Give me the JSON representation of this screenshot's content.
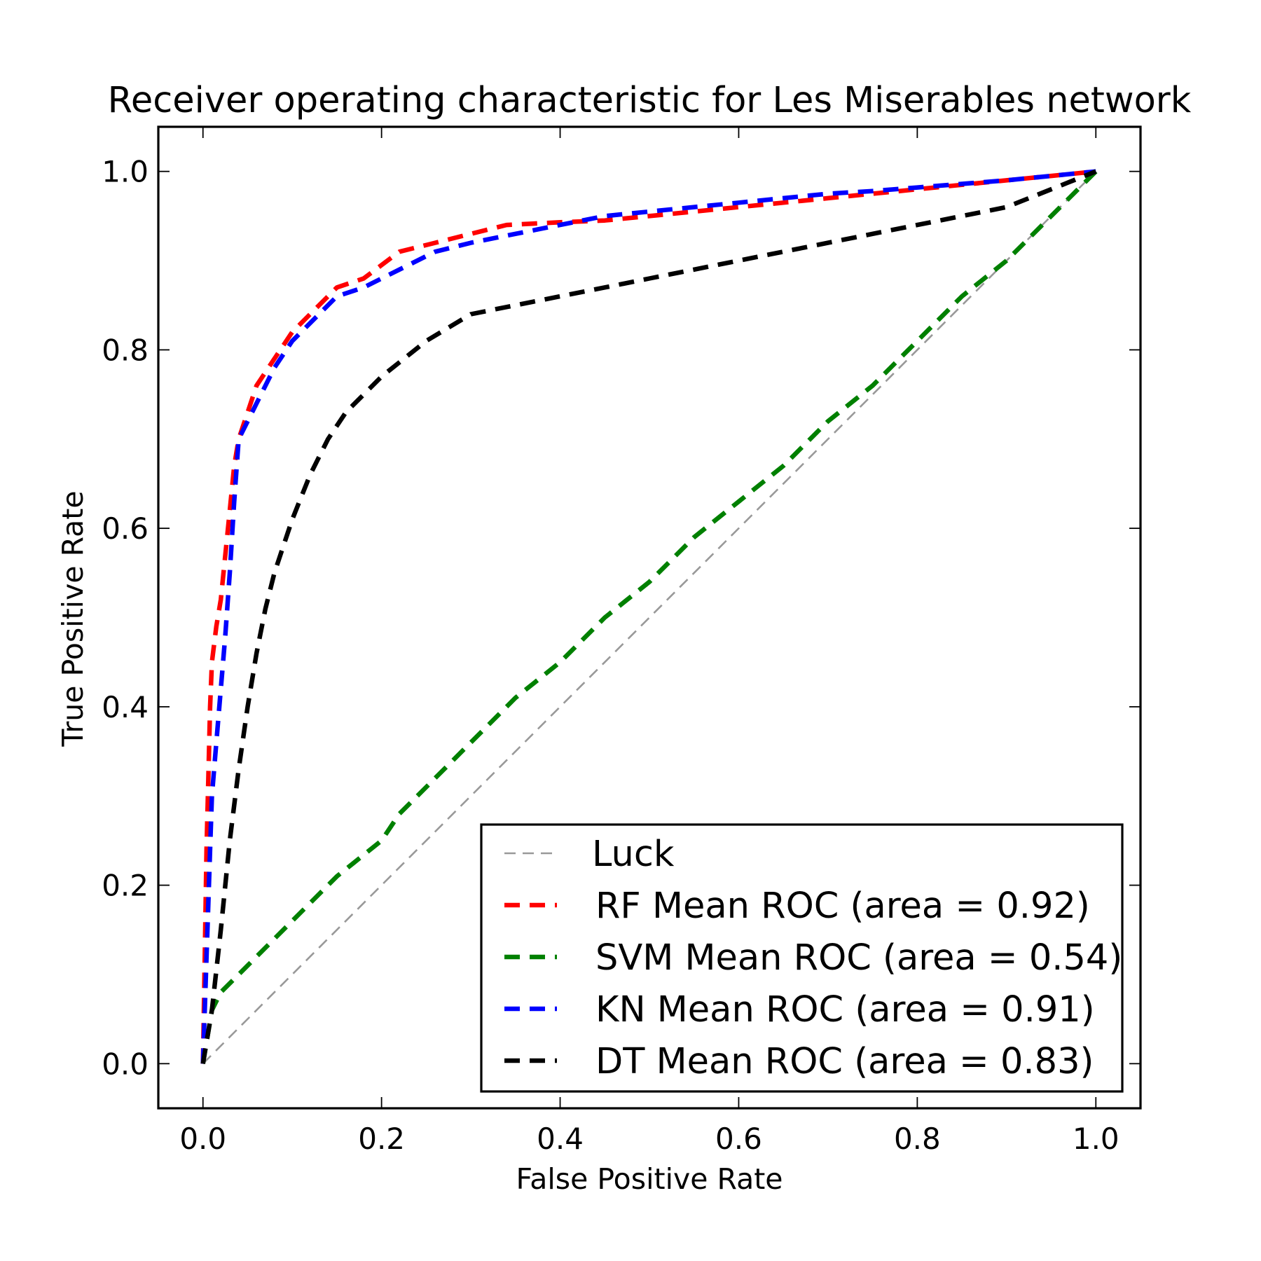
{
  "chart_data": {
    "type": "line",
    "title": "Receiver operating characteristic for Les Miserables network",
    "xlabel": "False Positive Rate",
    "ylabel": "True Positive Rate",
    "xlim": [
      -0.05,
      1.05
    ],
    "ylim": [
      -0.05,
      1.05
    ],
    "xticks": [
      "0.0",
      "0.2",
      "0.4",
      "0.6",
      "0.8",
      "1.0"
    ],
    "yticks": [
      "0.0",
      "0.2",
      "0.4",
      "0.6",
      "0.8",
      "1.0"
    ],
    "grid": false,
    "legend_position": "lower-right",
    "series": [
      {
        "name": "Luck",
        "color": "#999999",
        "style": "thin-dashed",
        "x": [
          0,
          1
        ],
        "y": [
          0,
          1
        ]
      },
      {
        "name": "RF Mean ROC (area = 0.92)",
        "color": "#ff0000",
        "style": "dashed",
        "x": [
          0,
          0.002,
          0.004,
          0.006,
          0.008,
          0.01,
          0.015,
          0.02,
          0.025,
          0.03,
          0.035,
          0.04,
          0.05,
          0.06,
          0.08,
          0.1,
          0.12,
          0.15,
          0.18,
          0.22,
          0.26,
          0.3,
          0.34,
          0.4,
          0.45,
          0.5,
          0.55,
          0.6,
          0.65,
          0.7,
          0.75,
          0.8,
          0.85,
          0.9,
          0.95,
          1.0
        ],
        "y": [
          0,
          0.12,
          0.24,
          0.32,
          0.4,
          0.45,
          0.49,
          0.52,
          0.57,
          0.62,
          0.67,
          0.7,
          0.73,
          0.76,
          0.79,
          0.82,
          0.84,
          0.87,
          0.88,
          0.91,
          0.92,
          0.93,
          0.94,
          0.943,
          0.945,
          0.95,
          0.955,
          0.96,
          0.965,
          0.97,
          0.975,
          0.98,
          0.985,
          0.99,
          0.995,
          1.0
        ]
      },
      {
        "name": "SVM Mean ROC (area = 0.54)",
        "color": "#008000",
        "style": "dashed",
        "x": [
          0,
          0.01,
          0.02,
          0.05,
          0.1,
          0.15,
          0.2,
          0.22,
          0.25,
          0.3,
          0.35,
          0.4,
          0.45,
          0.5,
          0.55,
          0.6,
          0.65,
          0.7,
          0.75,
          0.8,
          0.85,
          0.9,
          0.95,
          1.0
        ],
        "y": [
          0,
          0.06,
          0.08,
          0.11,
          0.16,
          0.21,
          0.25,
          0.28,
          0.31,
          0.36,
          0.41,
          0.45,
          0.5,
          0.54,
          0.59,
          0.63,
          0.67,
          0.72,
          0.76,
          0.81,
          0.86,
          0.9,
          0.95,
          1.0
        ]
      },
      {
        "name": "KN Mean ROC (area = 0.91)",
        "color": "#0000ff",
        "style": "dashed",
        "x": [
          0,
          0.002,
          0.004,
          0.006,
          0.008,
          0.01,
          0.015,
          0.02,
          0.025,
          0.03,
          0.035,
          0.04,
          0.05,
          0.06,
          0.08,
          0.1,
          0.12,
          0.15,
          0.18,
          0.22,
          0.26,
          0.3,
          0.35,
          0.4,
          0.45,
          0.5,
          0.55,
          0.6,
          0.65,
          0.7,
          0.75,
          0.8,
          0.85,
          0.9,
          0.95,
          1.0
        ],
        "y": [
          0,
          0.06,
          0.12,
          0.18,
          0.24,
          0.3,
          0.36,
          0.42,
          0.48,
          0.55,
          0.63,
          0.7,
          0.72,
          0.74,
          0.78,
          0.81,
          0.83,
          0.86,
          0.87,
          0.89,
          0.91,
          0.92,
          0.93,
          0.94,
          0.95,
          0.955,
          0.96,
          0.965,
          0.97,
          0.975,
          0.978,
          0.982,
          0.986,
          0.99,
          0.995,
          1.0
        ]
      },
      {
        "name": "DT Mean ROC (area = 0.83)",
        "color": "#000000",
        "style": "dashed",
        "x": [
          0,
          0.01,
          0.02,
          0.03,
          0.04,
          0.05,
          0.06,
          0.07,
          0.08,
          0.09,
          0.1,
          0.12,
          0.14,
          0.16,
          0.2,
          0.25,
          0.3,
          0.35,
          0.4,
          0.45,
          0.5,
          0.55,
          0.6,
          0.65,
          0.7,
          0.75,
          0.8,
          0.85,
          0.9,
          0.95,
          1.0
        ],
        "y": [
          0,
          0.06,
          0.15,
          0.25,
          0.33,
          0.4,
          0.46,
          0.51,
          0.55,
          0.58,
          0.61,
          0.66,
          0.7,
          0.73,
          0.77,
          0.81,
          0.84,
          0.85,
          0.86,
          0.87,
          0.88,
          0.89,
          0.9,
          0.91,
          0.92,
          0.93,
          0.94,
          0.95,
          0.96,
          0.98,
          1.0
        ]
      }
    ]
  }
}
